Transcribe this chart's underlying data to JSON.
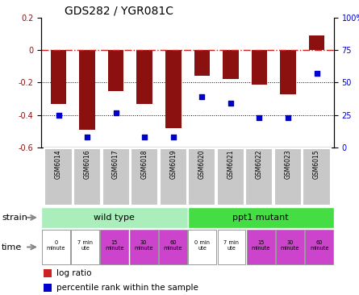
{
  "title": "GDS282 / YGR081C",
  "samples": [
    "GSM6014",
    "GSM6016",
    "GSM6017",
    "GSM6018",
    "GSM6019",
    "GSM6020",
    "GSM6021",
    "GSM6022",
    "GSM6023",
    "GSM6015"
  ],
  "log_ratio": [
    -0.33,
    -0.49,
    -0.25,
    -0.33,
    -0.48,
    -0.16,
    -0.18,
    -0.215,
    -0.27,
    0.09
  ],
  "percentile": [
    25,
    8,
    27,
    8,
    8,
    39,
    34,
    23,
    23,
    57
  ],
  "ylim_left": [
    -0.6,
    0.2
  ],
  "ylim_right": [
    0,
    100
  ],
  "bar_color": "#8B1010",
  "dot_color": "#0000CC",
  "hline_color": "#CC2222",
  "time_labels": [
    "0\nminute",
    "7 min\nute",
    "15\nminute",
    "30\nminute",
    "60\nminute",
    "0 min\nute",
    "7 min\nute",
    "15\nminute",
    "30\nminute",
    "60\nminute"
  ],
  "time_colors": [
    "#ffffff",
    "#ffffff",
    "#CC44CC",
    "#CC44CC",
    "#CC44CC",
    "#ffffff",
    "#ffffff",
    "#CC44CC",
    "#CC44CC",
    "#CC44CC"
  ],
  "wt_color": "#AAEEBB",
  "mut_color": "#44DD44",
  "gsm_bg": "#C8C8C8",
  "legend_log_color": "#CC2222",
  "legend_pct_color": "#0000CC"
}
